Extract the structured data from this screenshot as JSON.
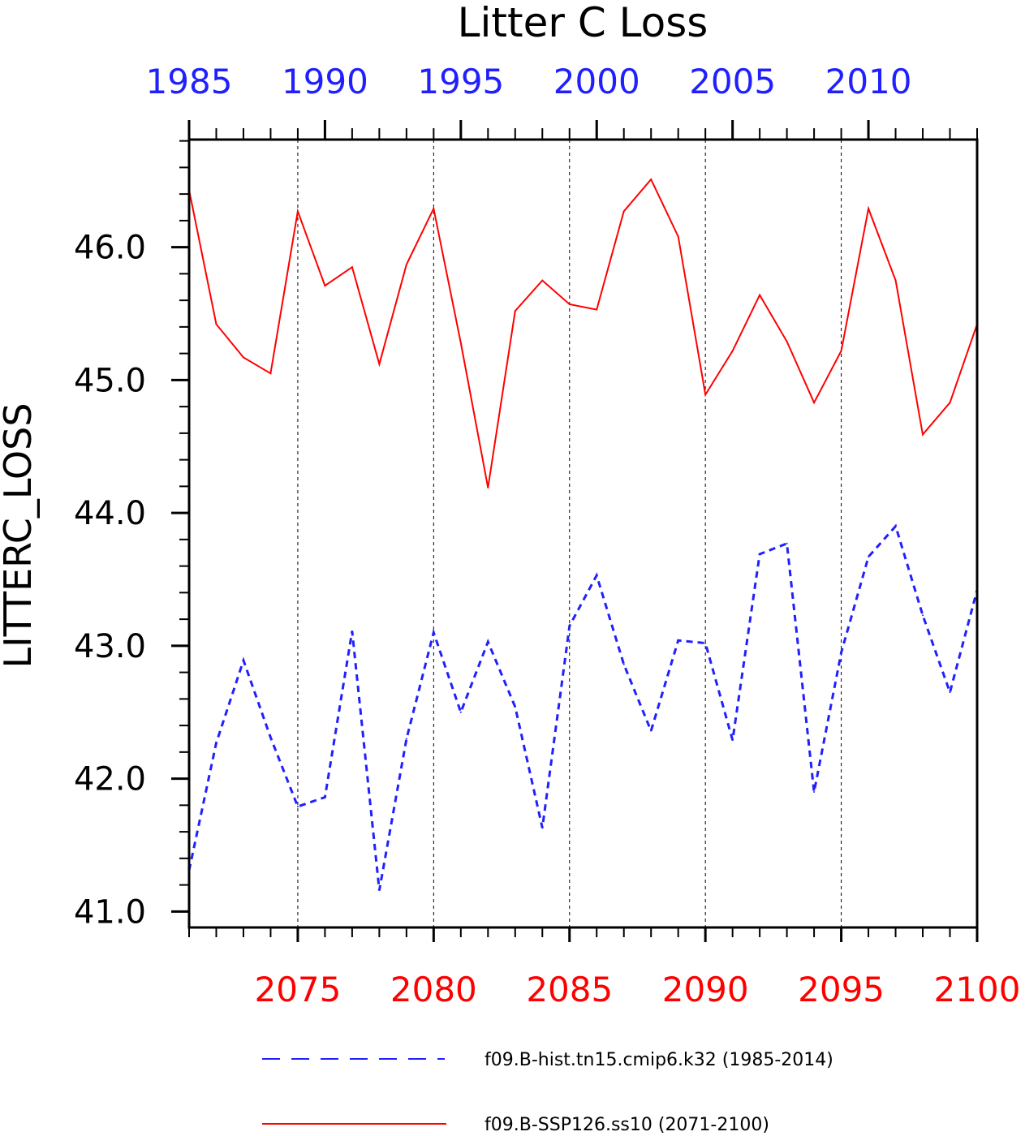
{
  "chart_data": {
    "type": "line",
    "title": "Litter C Loss",
    "ylabel": "LITTERC_LOSS",
    "ylim": [
      40.88,
      46.81
    ],
    "y_ticks": [
      "41.0",
      "42.0",
      "43.0",
      "44.0",
      "45.0",
      "46.0"
    ],
    "grid": "vertical dashed lines at labeled years",
    "legend_position": "bottom",
    "top_axis": {
      "color": "#2020ff",
      "range": [
        1985,
        2014
      ],
      "tick_labels": [
        "1985",
        "1990",
        "1995",
        "2000",
        "2005",
        "2010"
      ]
    },
    "bottom_axis": {
      "color": "#ff0000",
      "range": [
        2071,
        2100
      ],
      "tick_labels": [
        "2075",
        "2080",
        "2085",
        "2090",
        "2095",
        "2100"
      ]
    },
    "series": [
      {
        "name": "f09.B-hist.tn15.cmip6.k32 (1985-2014)",
        "axis": "top",
        "color": "#2020ff",
        "style": "dashed",
        "x": [
          1985,
          1986,
          1987,
          1988,
          1989,
          1990,
          1991,
          1992,
          1993,
          1994,
          1995,
          1996,
          1997,
          1998,
          1999,
          2000,
          2001,
          2002,
          2003,
          2004,
          2005,
          2006,
          2007,
          2008,
          2009,
          2010,
          2011,
          2012,
          2013,
          2014
        ],
        "values": [
          41.31,
          42.27,
          42.89,
          42.31,
          41.79,
          41.86,
          43.11,
          41.16,
          42.3,
          43.1,
          42.5,
          43.03,
          42.54,
          41.63,
          43.15,
          43.53,
          42.86,
          42.36,
          43.04,
          43.02,
          42.29,
          43.69,
          43.77,
          41.9,
          42.95,
          43.67,
          43.9,
          43.23,
          42.65,
          43.42
        ]
      },
      {
        "name": "f09.B-SSP126.ss10 (2071-2100)",
        "axis": "bottom",
        "color": "#ff0000",
        "style": "solid",
        "x": [
          2071,
          2072,
          2073,
          2074,
          2075,
          2076,
          2077,
          2078,
          2079,
          2080,
          2081,
          2082,
          2083,
          2084,
          2085,
          2086,
          2087,
          2088,
          2089,
          2090,
          2091,
          2092,
          2093,
          2094,
          2095,
          2096,
          2097,
          2098,
          2099,
          2100
        ],
        "values": [
          46.43,
          45.42,
          45.17,
          45.05,
          46.27,
          45.71,
          45.85,
          45.12,
          45.87,
          46.29,
          45.28,
          44.19,
          45.52,
          45.75,
          45.57,
          45.53,
          46.27,
          46.51,
          46.08,
          44.89,
          45.22,
          45.64,
          45.29,
          44.83,
          45.22,
          46.29,
          45.75,
          44.59,
          44.83,
          45.42
        ]
      }
    ]
  }
}
